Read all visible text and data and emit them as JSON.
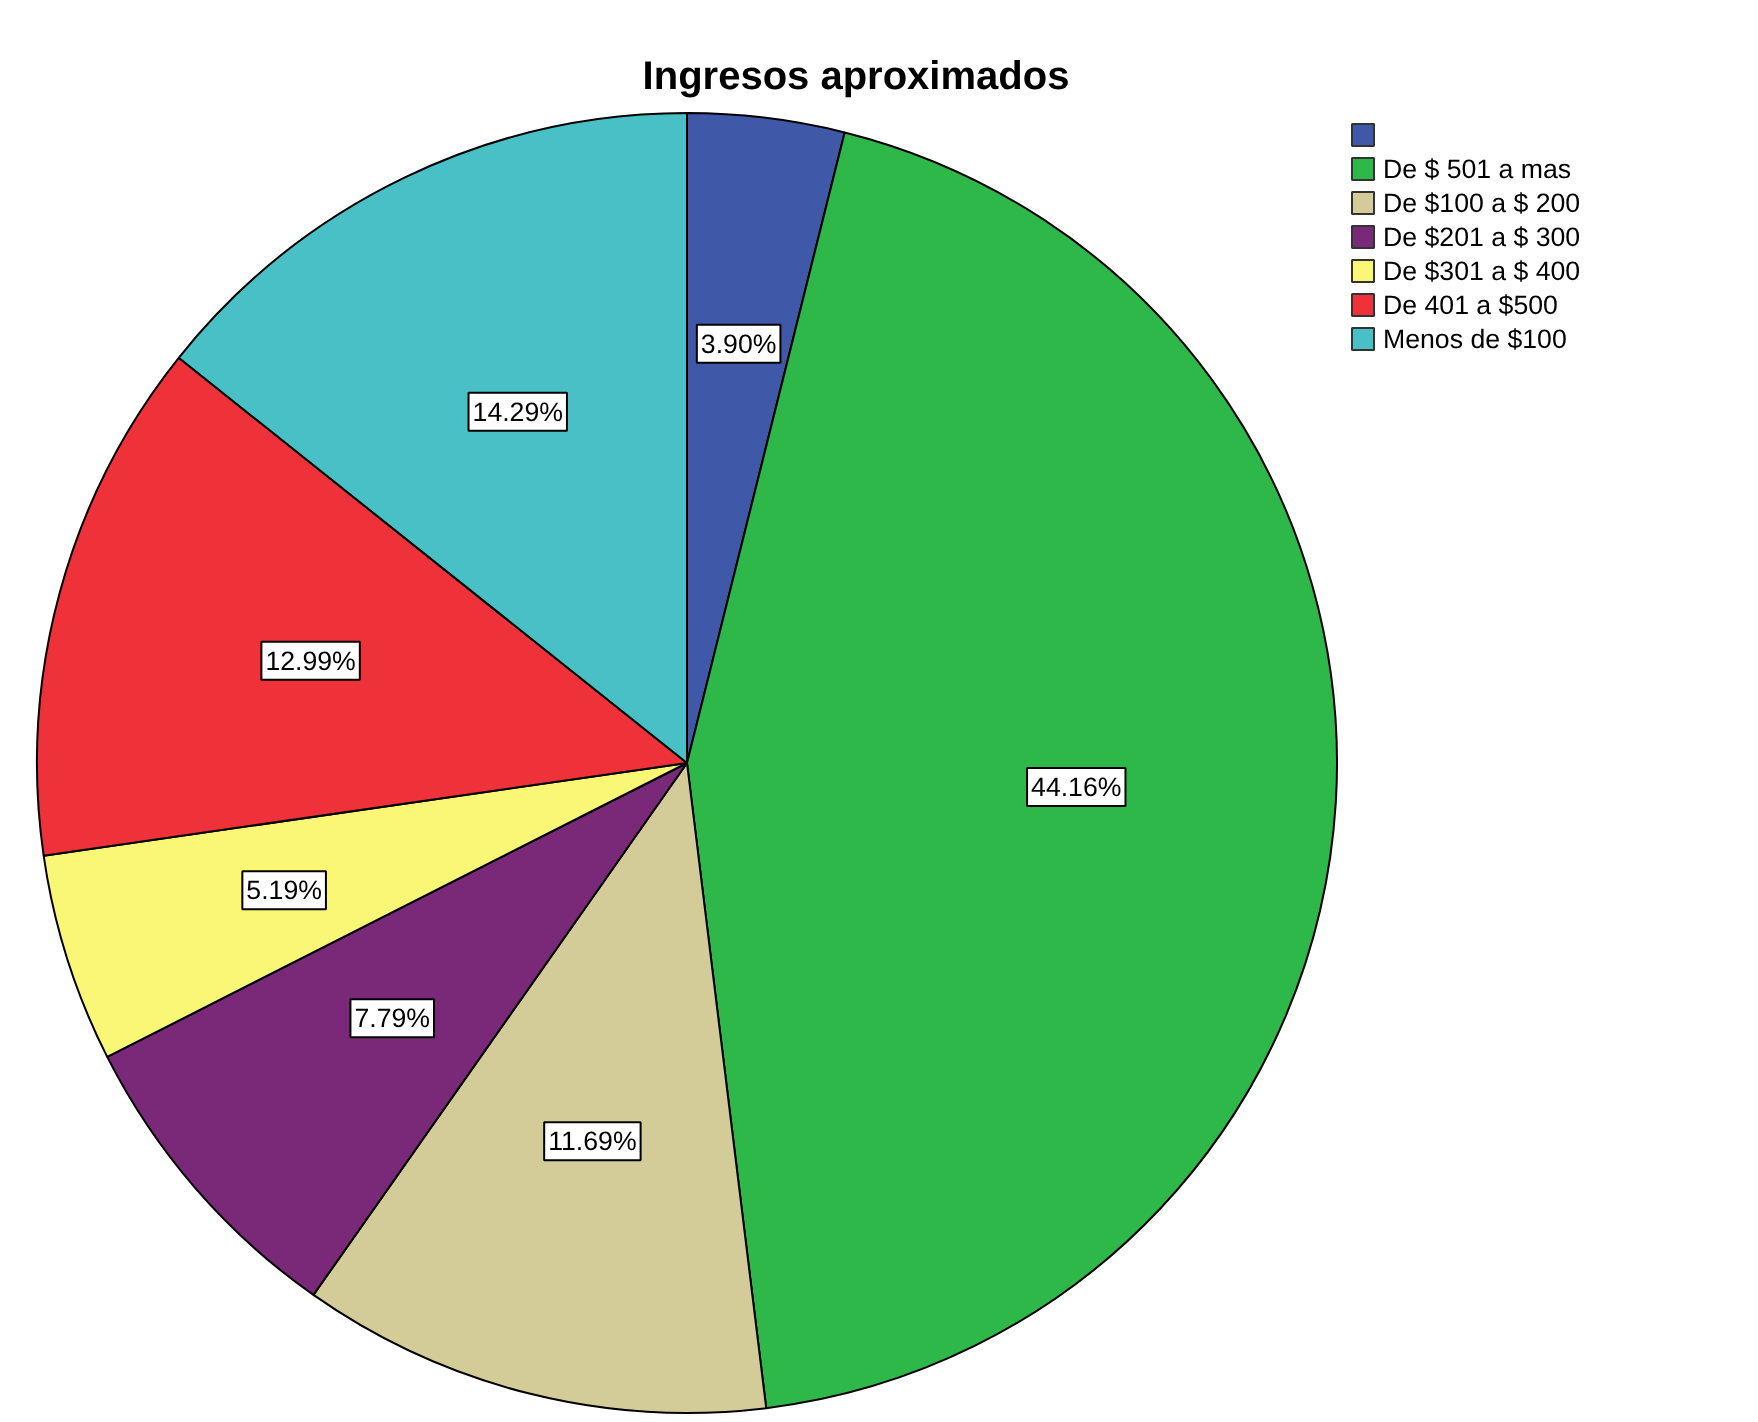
{
  "chart_data": {
    "type": "pie",
    "title": "Ingresos aproximados",
    "categories": [
      null,
      "De $ 501 a mas",
      "De $100 a $ 200",
      "De $201 a $ 300",
      "De $301 a $ 400",
      "De 401 a $500",
      "Menos de $100"
    ],
    "values": [
      3.9,
      44.16,
      11.69,
      7.79,
      5.19,
      12.99,
      14.29
    ],
    "colors": [
      "#3f59a8",
      "#2fb84a",
      "#d4cc98",
      "#7a2878",
      "#faf776",
      "#ef3139",
      "#48c0c6"
    ],
    "value_labels": [
      "3.90%",
      "44.16%",
      "11.69%",
      "7.79%",
      "5.19%",
      "12.99%",
      "14.29%"
    ],
    "legend": "top right"
  }
}
